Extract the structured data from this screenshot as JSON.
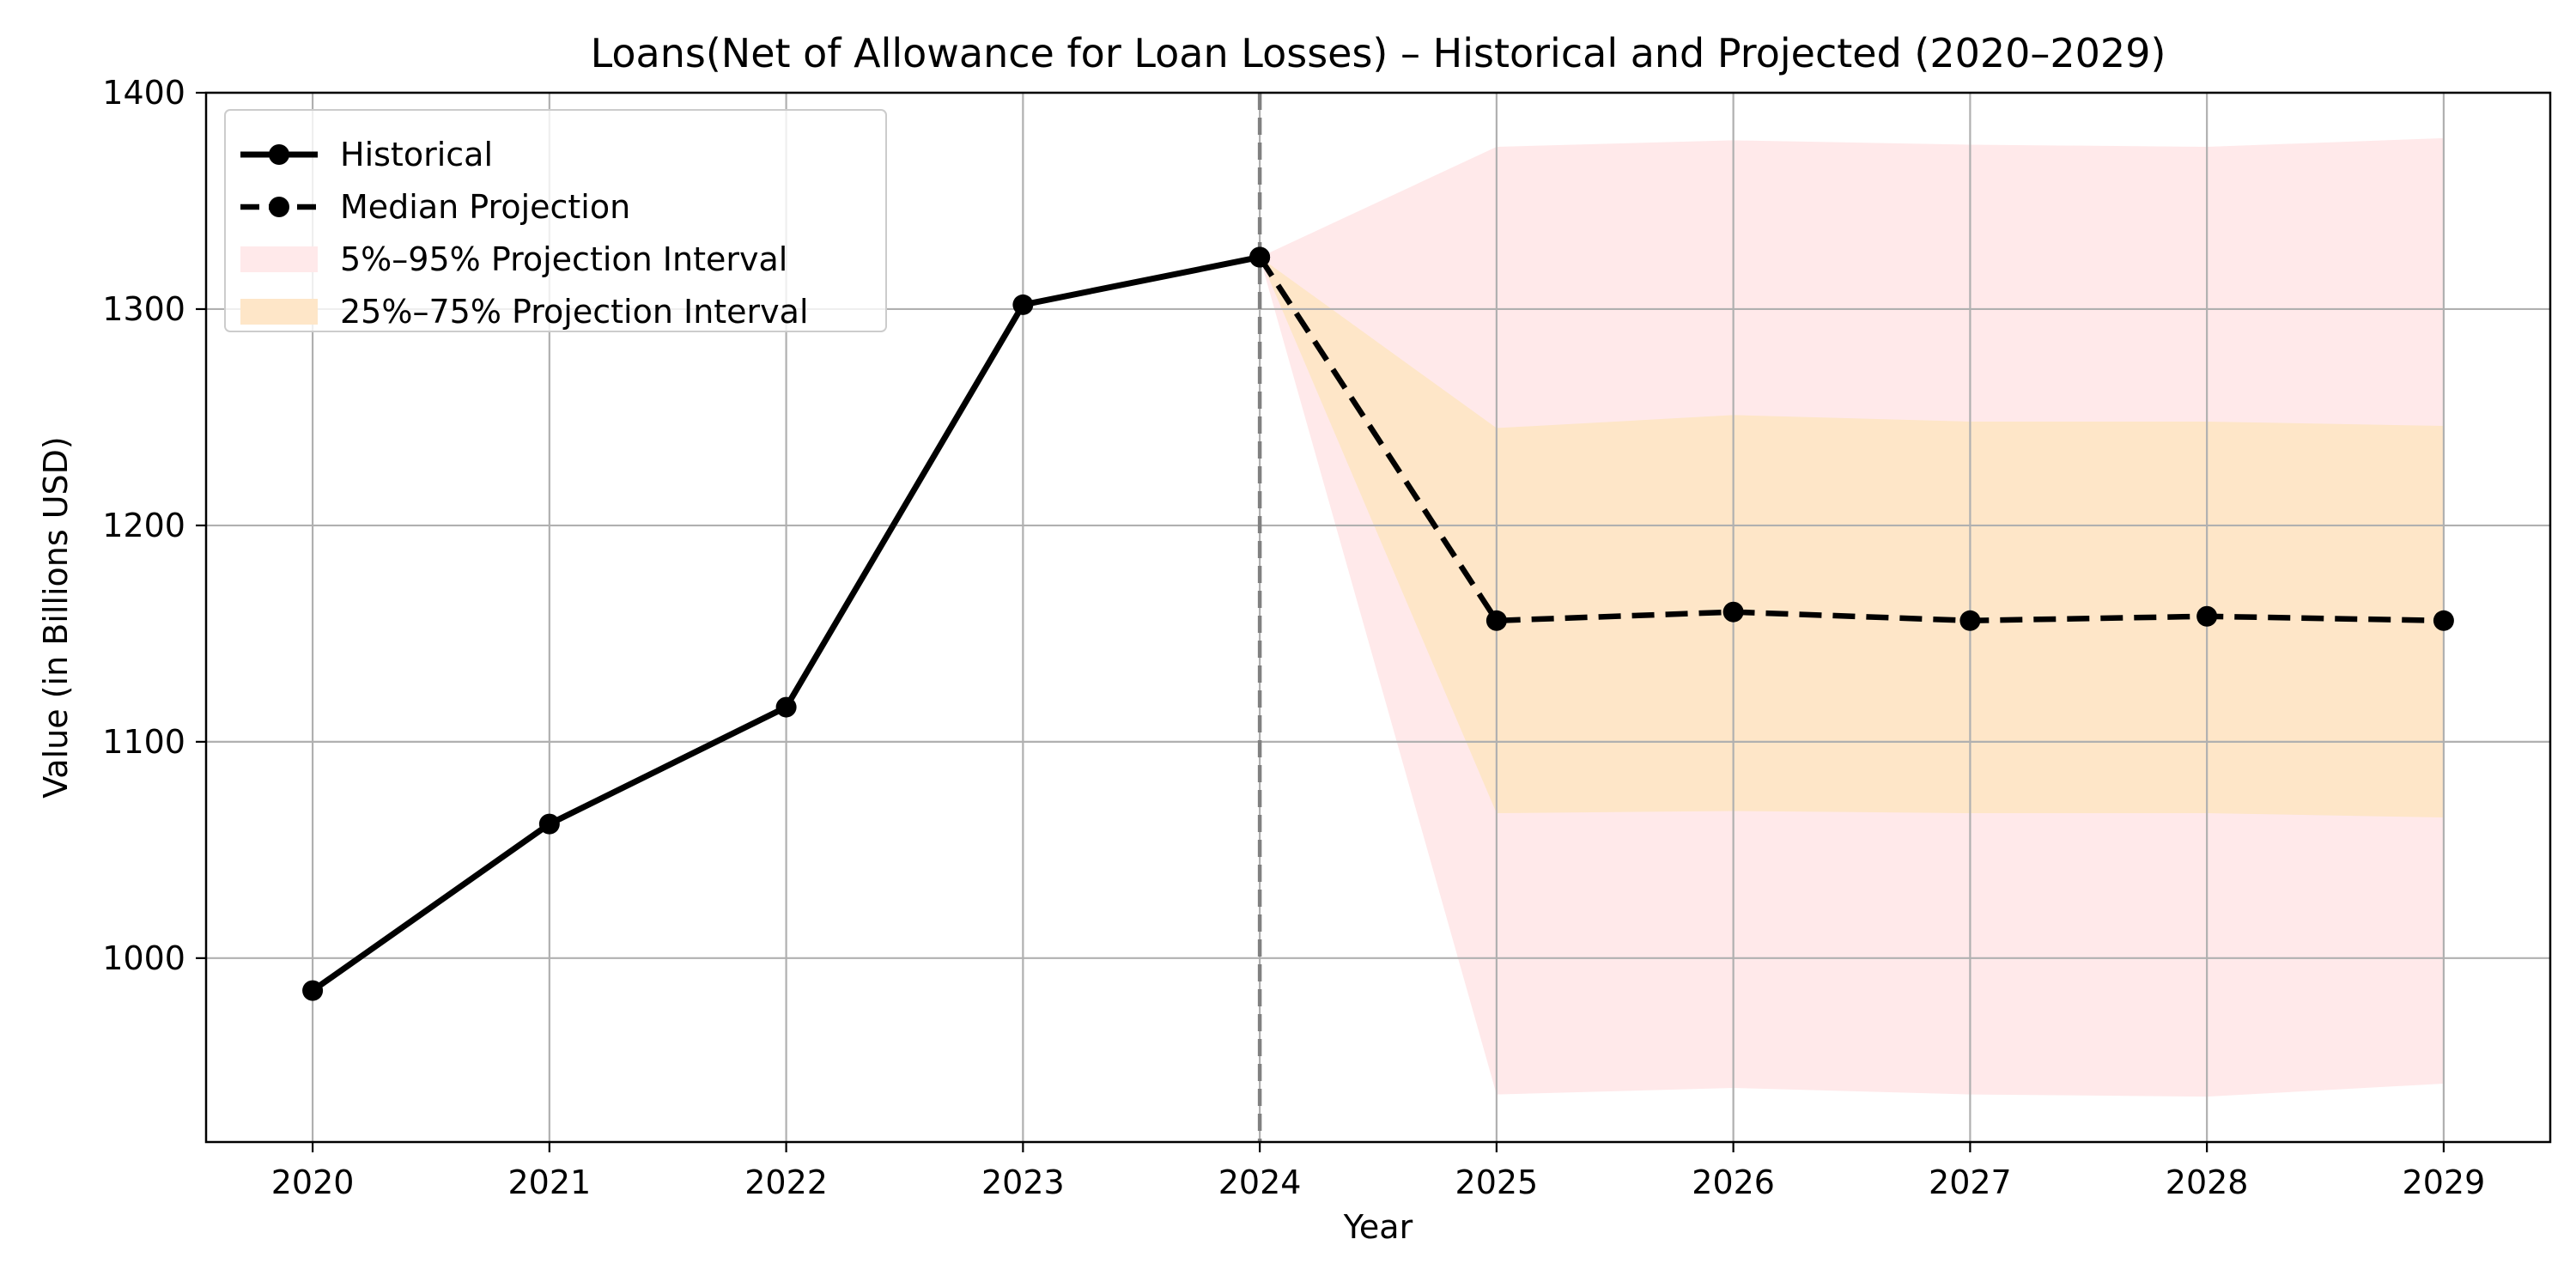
{
  "chart_data": {
    "type": "line",
    "title": "Loans(Net of Allowance for Loan Losses) – Historical and Projected (2020–2029)",
    "xlabel": "Year",
    "ylabel": "Value (in Billions USD)",
    "xlim": [
      2019.55,
      2029.45
    ],
    "ylim": [
      915,
      1400
    ],
    "x_ticks": [
      "2020",
      "2021",
      "2022",
      "2023",
      "2024",
      "2025",
      "2026",
      "2027",
      "2028",
      "2029"
    ],
    "y_ticks": [
      "1000",
      "1100",
      "1200",
      "1300",
      "1400"
    ],
    "grid": true,
    "legend_position": "upper-left",
    "vline_x": 2024,
    "series": [
      {
        "name": "Historical",
        "style": "solid",
        "color": "#000000",
        "x": [
          2020,
          2021,
          2022,
          2023,
          2024
        ],
        "values": [
          985,
          1062,
          1116,
          1302,
          1324
        ]
      },
      {
        "name": "Median Projection",
        "style": "dashed",
        "color": "#000000",
        "x": [
          2024,
          2025,
          2026,
          2027,
          2028,
          2029
        ],
        "values": [
          1324,
          1156,
          1160,
          1156,
          1158,
          1156
        ]
      }
    ],
    "bands": [
      {
        "name": "5%–95% Projection Interval",
        "color": "#ffe9ea",
        "x": [
          2024,
          2025,
          2026,
          2027,
          2028,
          2029
        ],
        "lower": [
          1324,
          937,
          940,
          937,
          936,
          942
        ],
        "upper": [
          1324,
          1375,
          1378,
          1376,
          1375,
          1379
        ]
      },
      {
        "name": "25%–75% Projection Interval",
        "color": "#fee6c8",
        "x": [
          2024,
          2025,
          2026,
          2027,
          2028,
          2029
        ],
        "lower": [
          1324,
          1067,
          1068,
          1067,
          1067,
          1065
        ],
        "upper": [
          1324,
          1245,
          1251,
          1248,
          1248,
          1246
        ]
      }
    ],
    "legend": [
      {
        "label": "Historical"
      },
      {
        "label": "Median Projection"
      },
      {
        "label": "5%–95% Projection Interval"
      },
      {
        "label": "25%–75% Projection Interval"
      }
    ],
    "colors": {
      "grid": "#b0b0b0",
      "vline": "#808080",
      "axes": "#000000"
    }
  }
}
